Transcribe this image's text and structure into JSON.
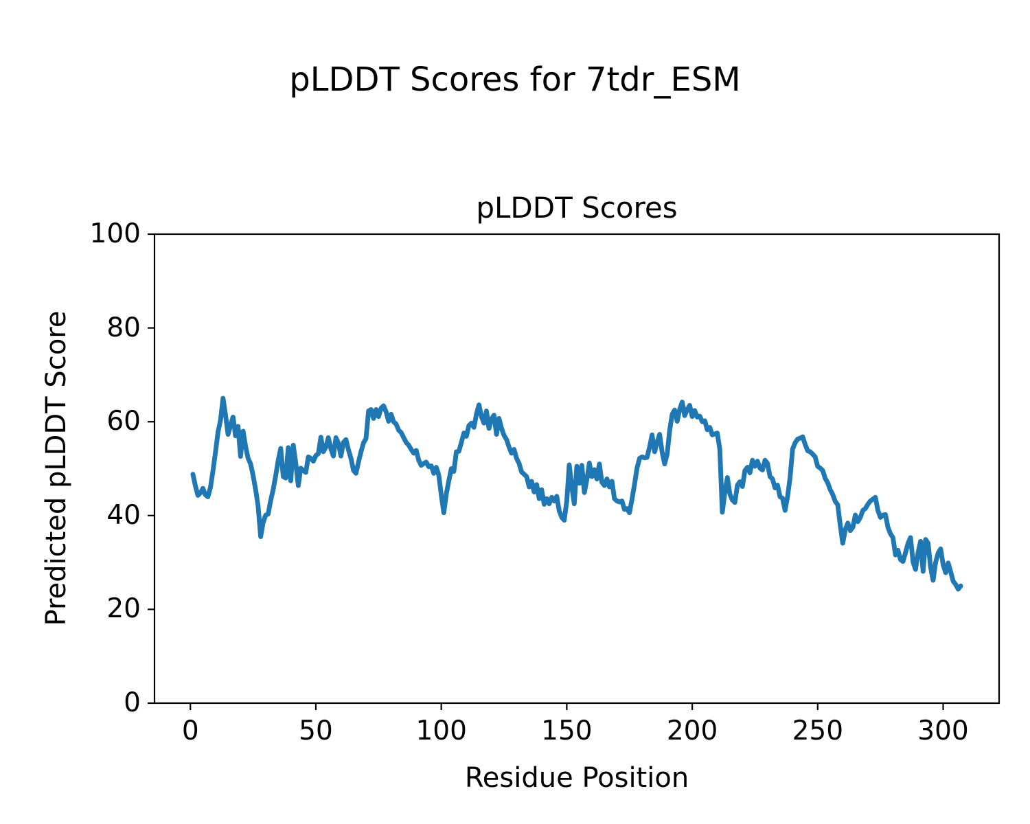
{
  "figure": {
    "suptitle": "pLDDT Scores for 7tdr_ESM",
    "axes_title": "pLDDT Scores",
    "xlabel": "Residue Position",
    "ylabel": "Predicted pLDDT Score"
  },
  "chart_data": {
    "type": "line",
    "title": "pLDDT Scores",
    "suptitle": "pLDDT Scores for 7tdr_ESM",
    "xlabel": "Residue Position",
    "ylabel": "Predicted pLDDT Score",
    "line_color": "#1f77b4",
    "grid": false,
    "legend": "none",
    "x_start": 1,
    "x_ticks": [
      0,
      50,
      100,
      150,
      200,
      250,
      300
    ],
    "y_ticks": [
      0,
      20,
      40,
      60,
      80,
      100
    ],
    "xlim": [
      -14.3,
      322.3
    ],
    "ylim": [
      0,
      100
    ],
    "values": [
      48.8,
      46.3,
      44.3,
      44.8,
      45.8,
      44.4,
      44.0,
      46.0,
      49.5,
      53.5,
      57.8,
      60.3,
      65.0,
      61.5,
      57.3,
      59.2,
      61.0,
      57.0,
      59.0,
      52.6,
      58.0,
      54.8,
      52.2,
      51.0,
      48.5,
      45.5,
      42.0,
      35.5,
      38.5,
      40.1,
      40.3,
      43.2,
      45.5,
      48.5,
      51.8,
      54.3,
      48.3,
      48.0,
      54.5,
      47.4,
      55.0,
      51.2,
      46.4,
      50.1,
      49.6,
      49.2,
      52.5,
      52.2,
      51.6,
      52.8,
      53.2,
      56.7,
      53.6,
      54.6,
      56.6,
      54.2,
      52.7,
      56.6,
      55.4,
      52.7,
      55.6,
      56.2,
      54.0,
      52.2,
      49.6,
      49.0,
      51.4,
      53.6,
      55.5,
      56.4,
      62.3,
      62.6,
      60.7,
      62.6,
      61.1,
      62.9,
      63.4,
      62.1,
      60.1,
      61.6,
      60.0,
      59.5,
      58.2,
      57.7,
      56.6,
      55.6,
      55.0,
      54.1,
      53.3,
      53.9,
      51.8,
      50.7,
      51.1,
      51.4,
      50.4,
      50.6,
      49.0,
      50.3,
      48.6,
      44.3,
      40.6,
      44.6,
      47.4,
      50.0,
      49.4,
      53.6,
      53.7,
      55.6,
      57.6,
      56.9,
      59.2,
      59.7,
      58.8,
      61.6,
      63.6,
      61.1,
      59.7,
      62.3,
      58.6,
      60.6,
      61.4,
      57.3,
      60.7,
      58.6,
      57.1,
      56.2,
      54.6,
      53.3,
      54.1,
      52.2,
      51.1,
      49.3,
      48.8,
      48.3,
      46.1,
      47.3,
      45.0,
      46.6,
      43.6,
      45.5,
      42.4,
      43.6,
      42.5,
      43.9,
      43.1,
      44.1,
      41.0,
      39.6,
      39.0,
      43.1,
      50.8,
      46.1,
      42.5,
      50.5,
      46.9,
      50.7,
      44.9,
      47.6,
      51.2,
      48.3,
      49.8,
      47.8,
      51.0,
      47.1,
      46.4,
      47.8,
      46.1,
      47.3,
      43.6,
      43.1,
      42.9,
      43.1,
      41.3,
      41.5,
      40.6,
      43.5,
      46.6,
      50.1,
      52.2,
      52.5,
      52.3,
      52.4,
      54.6,
      57.2,
      53.6,
      55.6,
      57.3,
      53.6,
      51.0,
      53.1,
      58.1,
      61.6,
      62.5,
      60.1,
      62.6,
      64.2,
      61.3,
      62.6,
      63.5,
      61.1,
      62.4,
      61.0,
      61.2,
      60.0,
      60.2,
      58.3,
      58.8,
      57.2,
      57.4,
      57.6,
      54.1,
      40.7,
      44.9,
      48.1,
      44.6,
      43.3,
      42.8,
      46.5,
      47.2,
      46.2,
      49.6,
      50.3,
      49.1,
      51.8,
      50.5,
      51.6,
      50.1,
      49.7,
      51.8,
      51.1,
      48.3,
      47.8,
      45.9,
      46.5,
      44.0,
      43.7,
      41.1,
      44.1,
      48.1,
      54.2,
      55.5,
      56.3,
      56.5,
      56.8,
      55.2,
      53.8,
      53.6,
      53.1,
      52.5,
      50.5,
      50.1,
      49.6,
      47.9,
      47.0,
      45.5,
      44.5,
      43.0,
      42.3,
      37.9,
      34.1,
      37.0,
      38.4,
      36.8,
      37.5,
      40.1,
      38.7,
      39.6,
      41.1,
      41.5,
      42.4,
      43.1,
      43.5,
      43.9,
      41.1,
      39.6,
      40.1,
      40.2,
      37.5,
      36.1,
      35.3,
      31.6,
      32.6,
      30.6,
      30.2,
      32.1,
      34.1,
      35.3,
      30.1,
      28.5,
      32.1,
      34.5,
      28.1,
      34.9,
      34.1,
      29.0,
      26.2,
      30.0,
      32.0,
      32.9,
      29.5,
      27.8,
      29.9,
      28.0,
      26.0,
      25.3,
      24.3,
      25.0
    ]
  }
}
